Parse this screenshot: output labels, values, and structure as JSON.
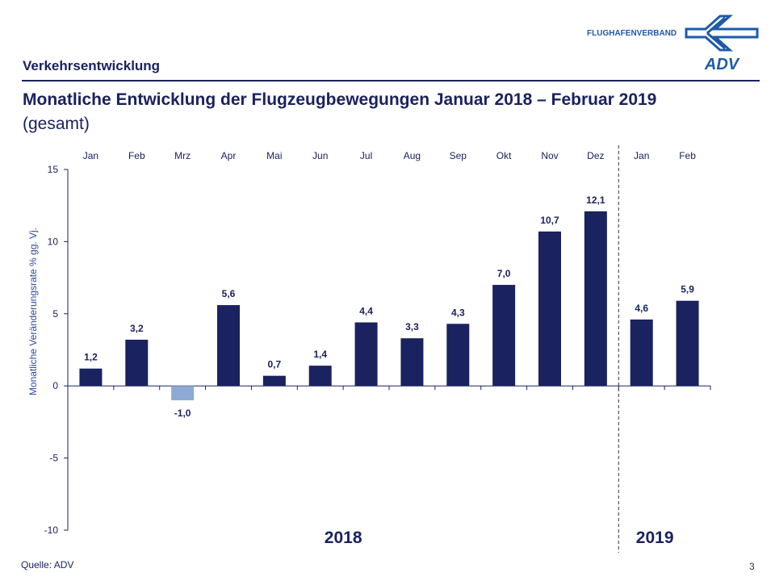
{
  "header": {
    "section": "Verkehrsentwicklung",
    "title": "Monatliche Entwicklung der Flugzeugbewegungen Januar 2018 – Februar 2019",
    "subtitle": "(gesamt)",
    "logo_text": "FLUGHAFENVERBAND",
    "logo_mark": "ADV"
  },
  "footer": {
    "source": "Quelle: ADV",
    "page": "3"
  },
  "colors": {
    "primary": "#1a2260",
    "negative": "#8eaad4",
    "axis_label": "#2e4a9e",
    "logo": "#1e5aa8"
  },
  "chart_data": {
    "type": "bar",
    "categories": [
      "Jan",
      "Feb",
      "Mrz",
      "Apr",
      "Mai",
      "Jun",
      "Jul",
      "Aug",
      "Sep",
      "Okt",
      "Nov",
      "Dez",
      "Jan",
      "Feb"
    ],
    "values": [
      1.2,
      3.2,
      -1.0,
      5.6,
      0.7,
      1.4,
      4.4,
      3.3,
      4.3,
      7.0,
      10.7,
      12.1,
      4.6,
      5.9
    ],
    "value_labels": [
      "1,2",
      "3,2",
      "-1,0",
      "5,6",
      "0,7",
      "1,4",
      "4,4",
      "3,3",
      "4,3",
      "7,0",
      "10,7",
      "12,1",
      "4,6",
      "5,9"
    ],
    "ylabel": "Monatliche Veränderungsrate % gg. Vj.",
    "ylim": [
      -10,
      15
    ],
    "yticks": [
      15,
      10,
      5,
      0,
      -5,
      -10
    ],
    "groups": [
      {
        "label": "2018",
        "count": 12
      },
      {
        "label": "2019",
        "count": 2
      }
    ],
    "grid": false,
    "legend": "none"
  }
}
